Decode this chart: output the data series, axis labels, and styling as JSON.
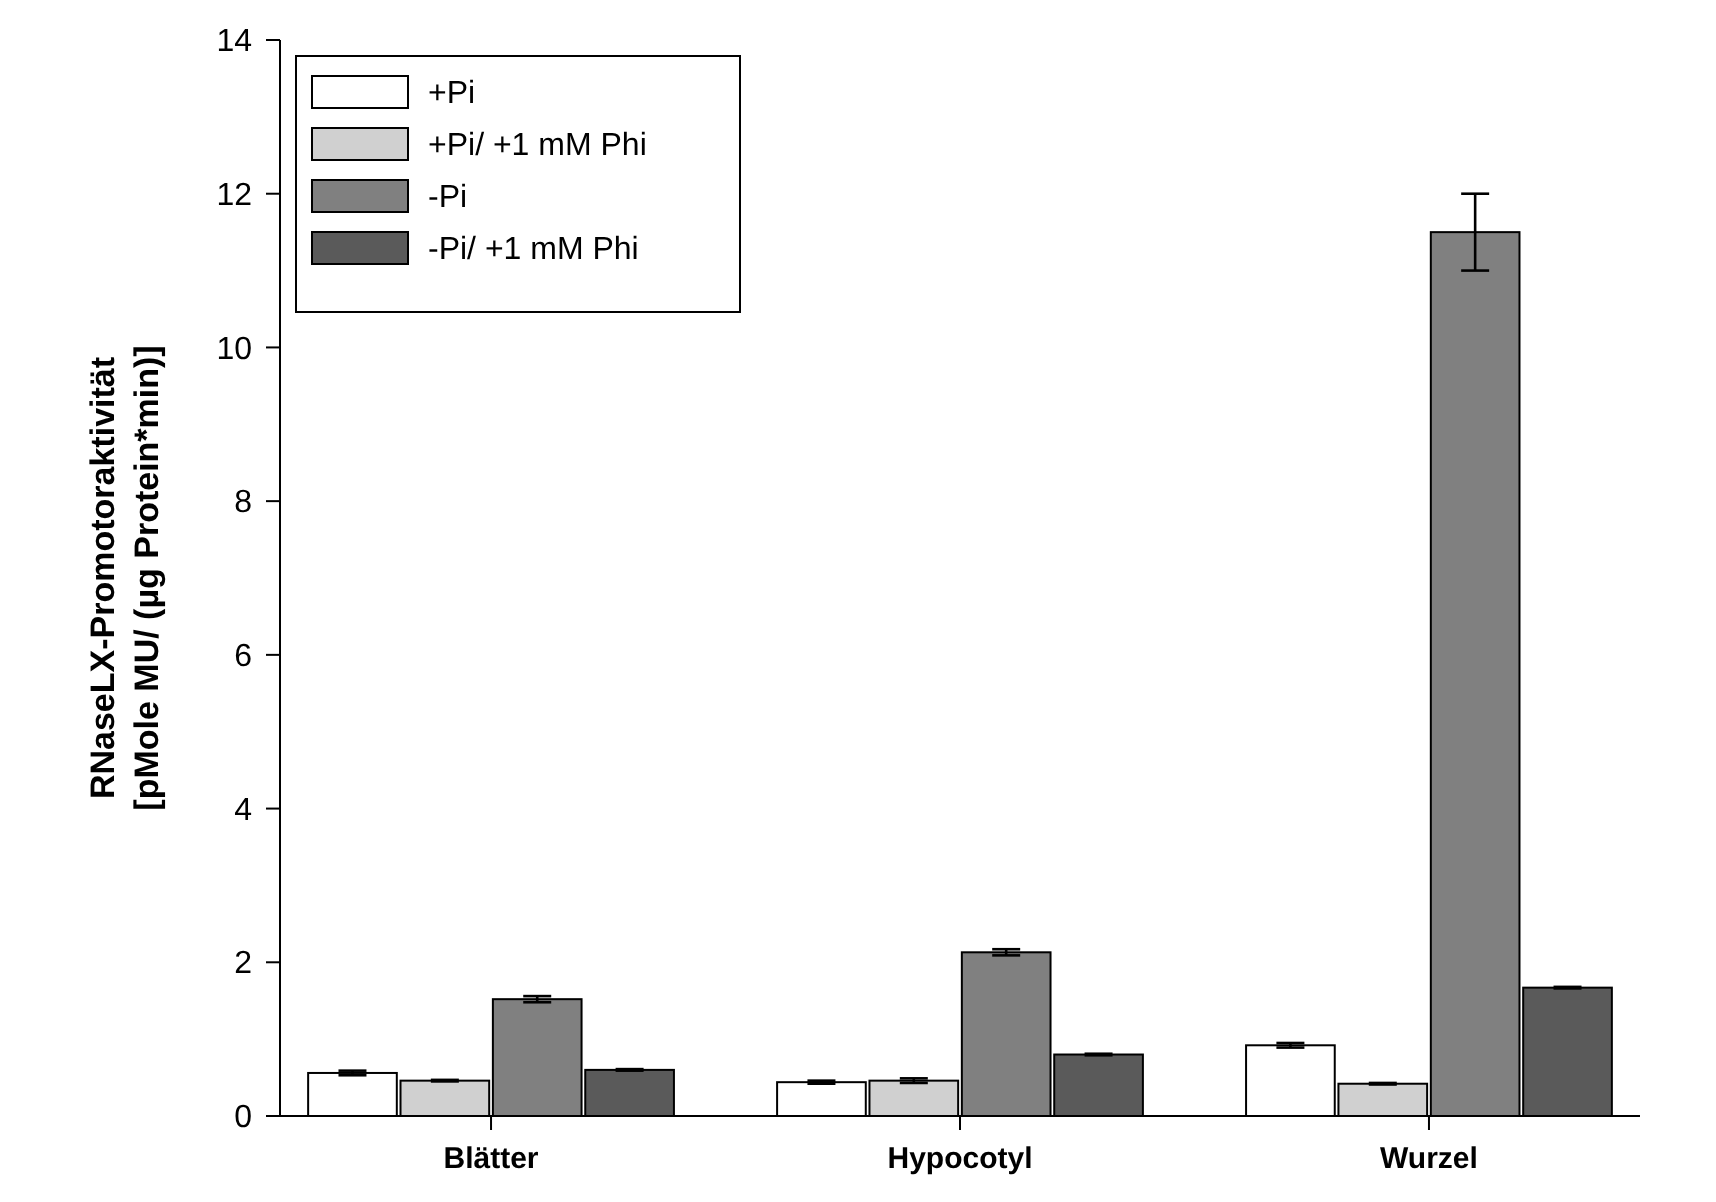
{
  "chart_data": {
    "type": "bar",
    "ylabel": "RNaseLX-Promotoraktivität\n[pMole MU/ (µg Protein*min)]",
    "categories": [
      "Blätter",
      "Hypocotyl",
      "Wurzel"
    ],
    "series": [
      {
        "name": "+Pi",
        "color": "#ffffff",
        "values": [
          0.56,
          0.44,
          0.92
        ],
        "errors": [
          0.03,
          0.02,
          0.03
        ]
      },
      {
        "name": "+Pi/ +1 mM Phi",
        "color": "#d0d0d0",
        "values": [
          0.46,
          0.46,
          0.42
        ],
        "errors": [
          0.01,
          0.03,
          0.01
        ]
      },
      {
        "name": "-Pi",
        "color": "#808080",
        "values": [
          1.52,
          2.13,
          11.5
        ],
        "errors": [
          0.04,
          0.04,
          0.5
        ]
      },
      {
        "name": "-Pi/ +1 mM Phi",
        "color": "#5a5a5a",
        "values": [
          0.6,
          0.8,
          1.67
        ],
        "errors": [
          0.01,
          0.01,
          0.01
        ]
      }
    ],
    "ylim": [
      0,
      14
    ],
    "yticks": [
      0,
      2,
      4,
      6,
      8,
      10,
      12,
      14
    ],
    "legend": "top left",
    "grid": false
  }
}
